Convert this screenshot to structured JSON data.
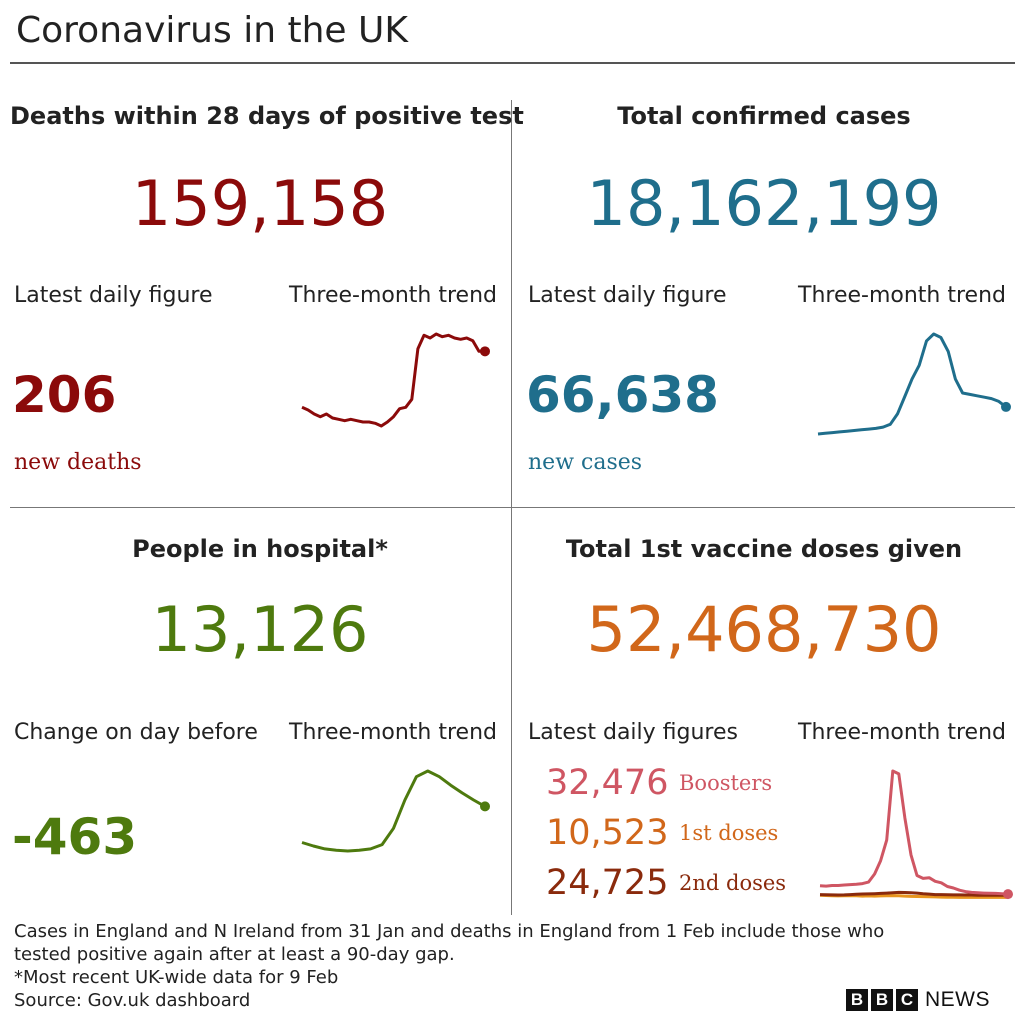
{
  "title": "Coronavirus in the UK",
  "colors": {
    "deaths": "#8b0a0a",
    "cases": "#1f6e8c",
    "hospital": "#4e7a0e",
    "vaccine": "#d1671a",
    "boosters": "#cf5663",
    "first": "#d1671a",
    "second": "#8a2a0c"
  },
  "deaths": {
    "heading": "Deaths within 28 days of positive test",
    "total": "159,158",
    "latest_label": "Latest daily figure",
    "trend_label": "Three-month trend",
    "daily": "206",
    "unit": "new deaths"
  },
  "cases": {
    "heading": "Total confirmed cases",
    "total": "18,162,199",
    "latest_label": "Latest daily figure",
    "trend_label": "Three-month trend",
    "daily": "66,638",
    "unit": "new cases"
  },
  "hospital": {
    "heading": "People in hospital*",
    "total": "13,126",
    "latest_label": "Change on day before",
    "trend_label": "Three-month trend",
    "daily": "-463"
  },
  "vaccine": {
    "heading": "Total 1st vaccine doses given",
    "total": "52,468,730",
    "latest_label": "Latest daily figures",
    "trend_label": "Three-month trend",
    "rows": [
      {
        "value": "32,476",
        "label": "Boosters"
      },
      {
        "value": "10,523",
        "label": "1st doses"
      },
      {
        "value": "24,725",
        "label": "2nd doses"
      }
    ]
  },
  "footer": {
    "note1": "Cases in England and N Ireland from 31 Jan and deaths in England from 1 Feb include those who",
    "note2": "tested positive again after at least a 90-day gap.",
    "note3": "*Most recent UK-wide data for 9 Feb",
    "source": "Source: Gov.uk dashboard"
  },
  "brand": {
    "letters": [
      "B",
      "B",
      "C"
    ],
    "news": "NEWS"
  },
  "chart_data": [
    {
      "type": "line",
      "series": [
        {
          "values": [
            98,
            96,
            93,
            91,
            93,
            90,
            89,
            88,
            89,
            88,
            87,
            87,
            86,
            84,
            87,
            91,
            97,
            98,
            104,
            142,
            152,
            150,
            153,
            151,
            152,
            150,
            149,
            150,
            148,
            140,
            140
          ]
        }
      ]
    },
    {
      "type": "line",
      "series": [
        {
          "values": [
            41,
            42,
            43,
            44,
            45,
            46,
            47,
            48,
            49,
            51,
            55,
            70,
            95,
            120,
            140,
            175,
            185,
            180,
            160,
            120,
            100,
            98,
            96,
            94,
            92,
            88,
            80
          ]
        }
      ]
    },
    {
      "type": "line",
      "series": [
        {
          "values": [
            8.5,
            8.0,
            7.6,
            7.4,
            7.3,
            7.4,
            7.6,
            8.2,
            10.5,
            14.5,
            17.8,
            18.6,
            17.8,
            16.6,
            15.5,
            14.5,
            13.6
          ]
        }
      ]
    },
    {
      "type": "line",
      "series": [
        {
          "name": "Boosters",
          "values": [
            90,
            88,
            92,
            92,
            95,
            98,
            100,
            105,
            115,
            170,
            260,
            400,
            870,
            850,
            550,
            300,
            160,
            140,
            145,
            120,
            110,
            85,
            75,
            60,
            50,
            45,
            42,
            40,
            39,
            38,
            36,
            33
          ]
        },
        {
          "name": "1st doses",
          "values": [
            25,
            24,
            22,
            21,
            22,
            23,
            22,
            20,
            21,
            20,
            21,
            22,
            23,
            22,
            20,
            18,
            17,
            16,
            15,
            14,
            13,
            12,
            12,
            11,
            11,
            11,
            11,
            11,
            11,
            11,
            11,
            11
          ]
        },
        {
          "name": "2nd doses",
          "values": [
            30,
            29,
            28,
            27,
            28,
            30,
            32,
            34,
            35,
            36,
            38,
            40,
            42,
            45,
            44,
            42,
            40,
            36,
            33,
            30,
            30,
            29,
            28,
            28,
            27,
            27,
            26,
            26,
            25,
            25,
            25,
            25
          ]
        }
      ]
    }
  ]
}
